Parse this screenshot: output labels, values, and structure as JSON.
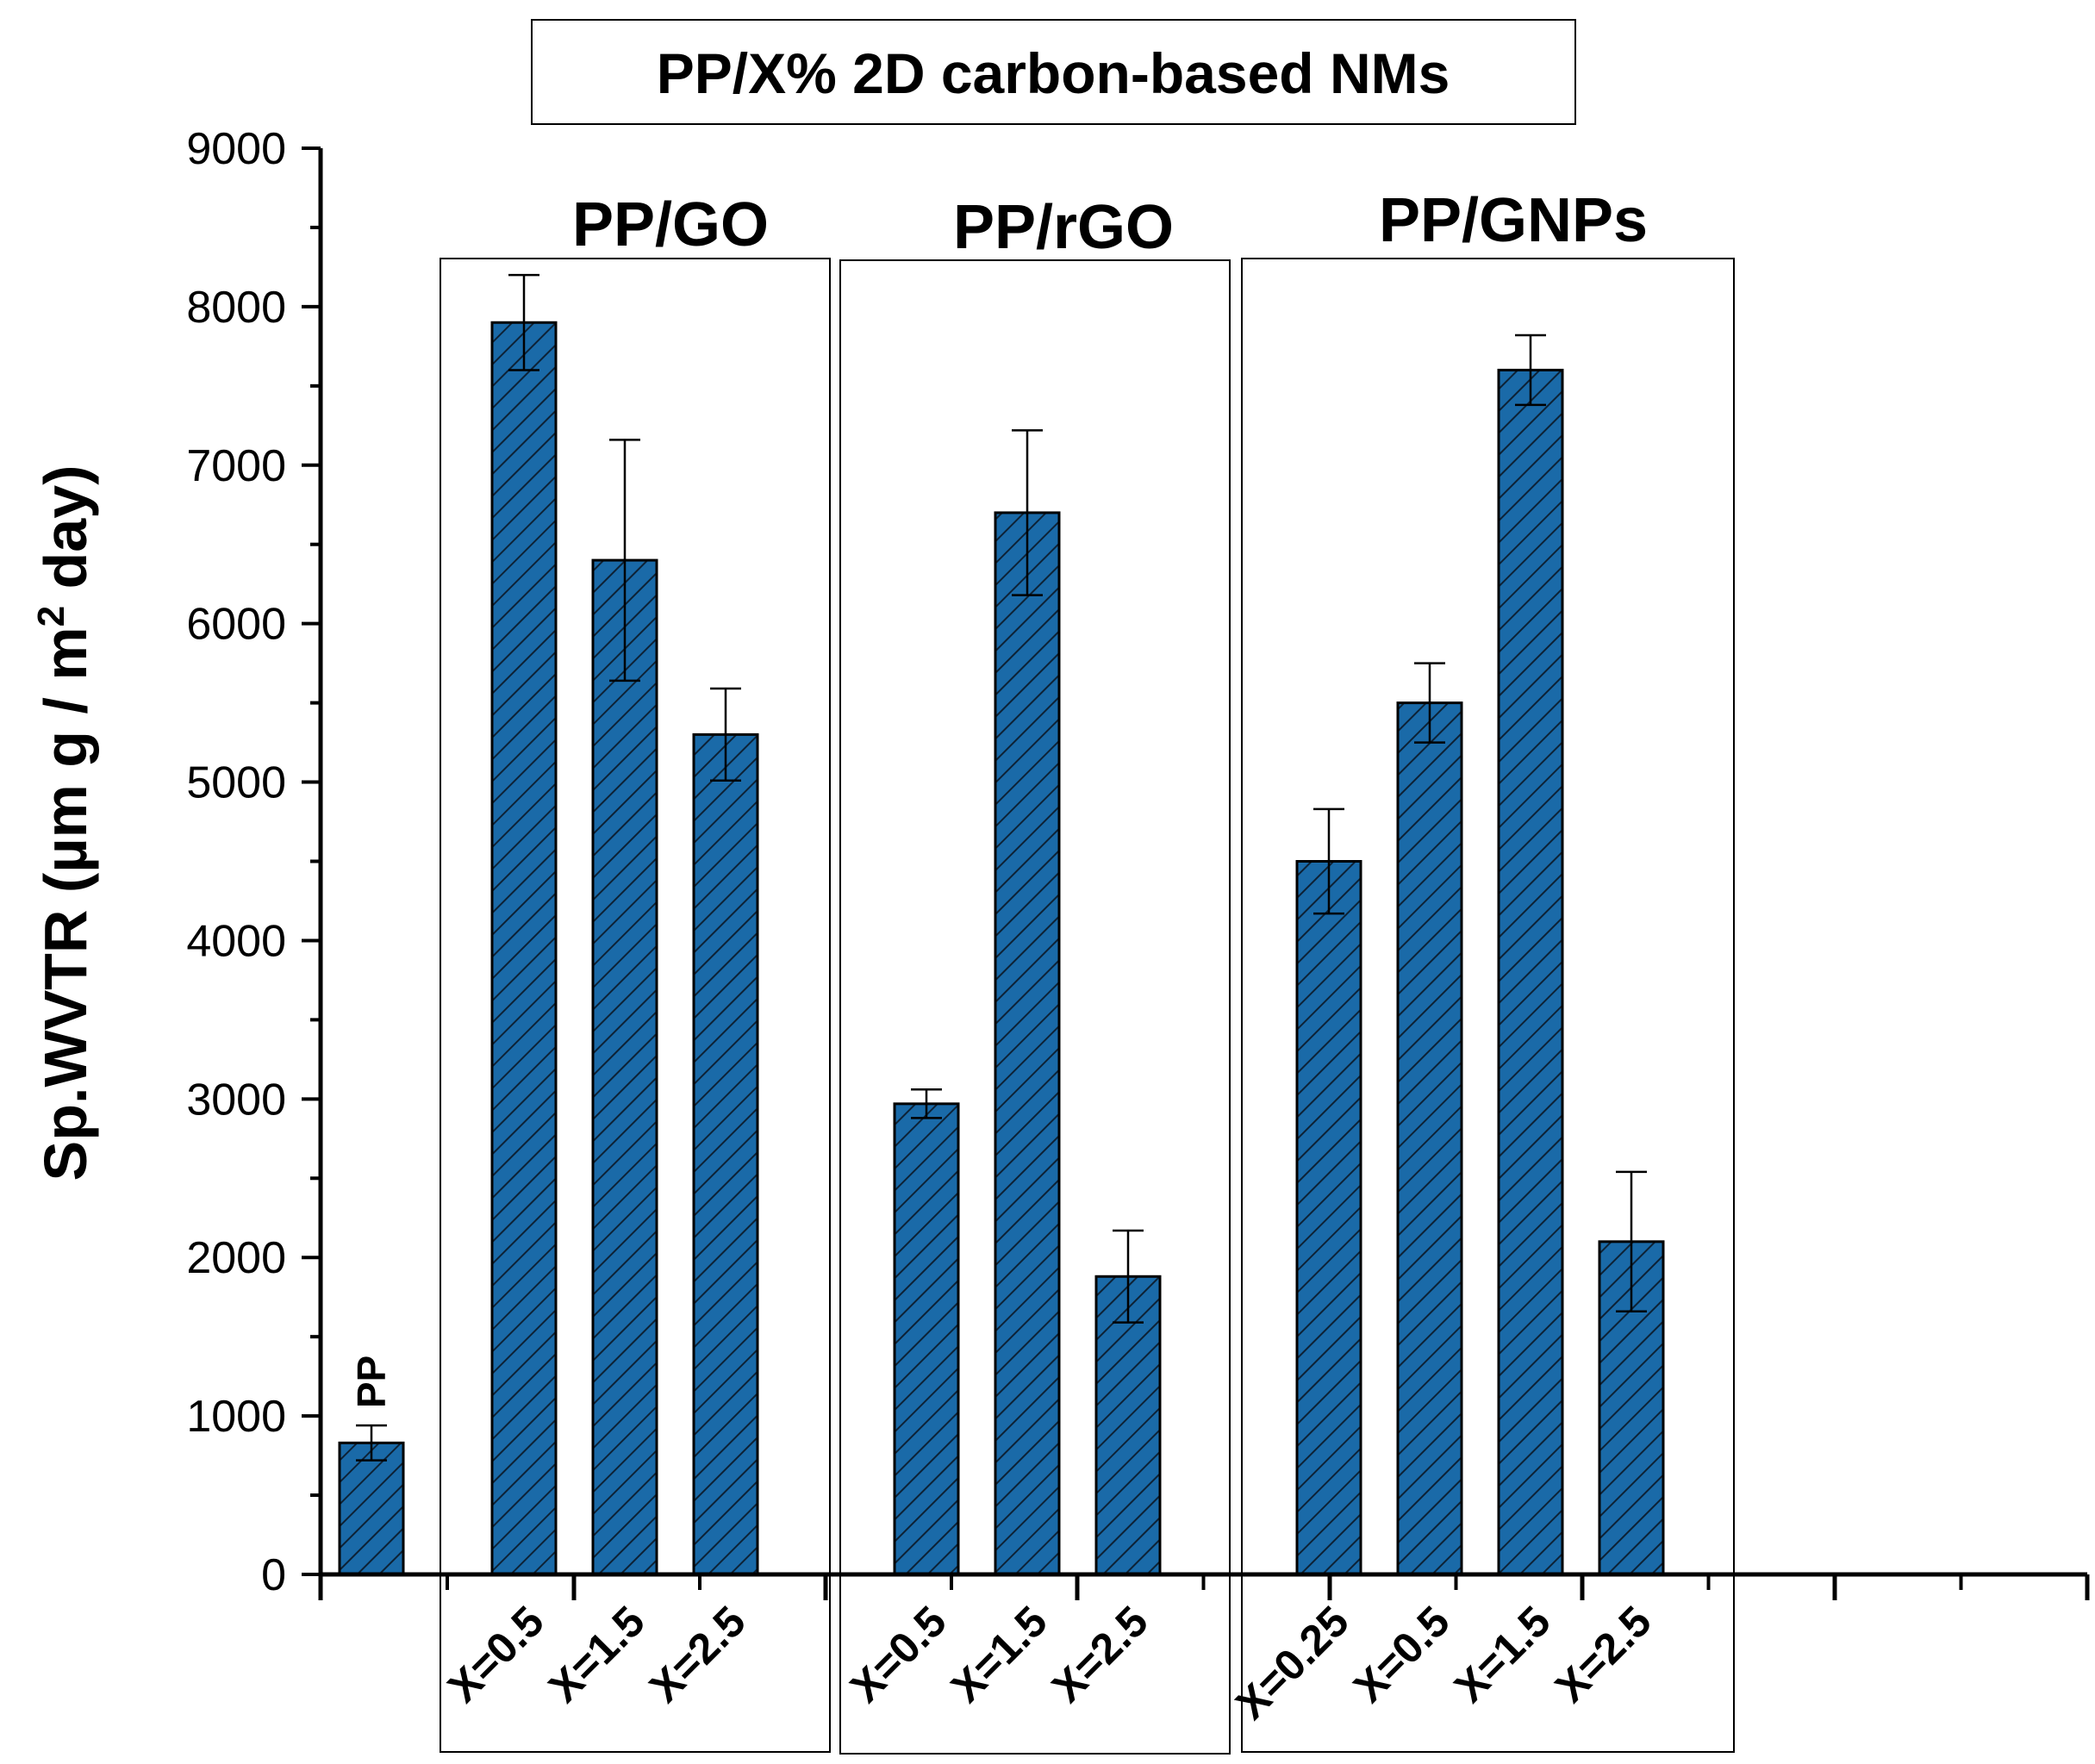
{
  "chart_data": {
    "type": "bar",
    "title": "PP/X% 2D carbon-based NMs",
    "ylabel": "Sp.WVTR (µm g / m² day)",
    "ylabel_main": "Sp.WVTR (µm g / m",
    "ylabel_sup": "2",
    "ylabel_tail": " day)",
    "xlabel": "",
    "ylim": [
      0,
      9000
    ],
    "yticks": [
      0,
      1000,
      2000,
      3000,
      4000,
      5000,
      6000,
      7000,
      8000,
      9000
    ],
    "grid": false,
    "bar_color": "#1a6aa8",
    "hatch": "diagonal",
    "categories": [
      "PP",
      "X=0.5",
      "X=1.5",
      "X=2.5",
      "X=0.5",
      "X=1.5",
      "X=2.5",
      "X=0.25",
      "X=0.5",
      "X=1.5",
      "X=2.5"
    ],
    "values": [
      830,
      7900,
      6400,
      5300,
      2970,
      6700,
      1880,
      4500,
      5500,
      7600,
      2100
    ],
    "errors": [
      110,
      300,
      760,
      290,
      90,
      520,
      290,
      330,
      250,
      220,
      440
    ],
    "groups": [
      {
        "name": "PP/GO",
        "members": [
          1,
          2,
          3
        ]
      },
      {
        "name": "PP/rGO",
        "members": [
          4,
          5,
          6
        ]
      },
      {
        "name": "PP/GNPs",
        "members": [
          7,
          8,
          9,
          10
        ]
      }
    ],
    "bar_labels": [
      {
        "bar": 0,
        "text": "PP"
      }
    ]
  }
}
